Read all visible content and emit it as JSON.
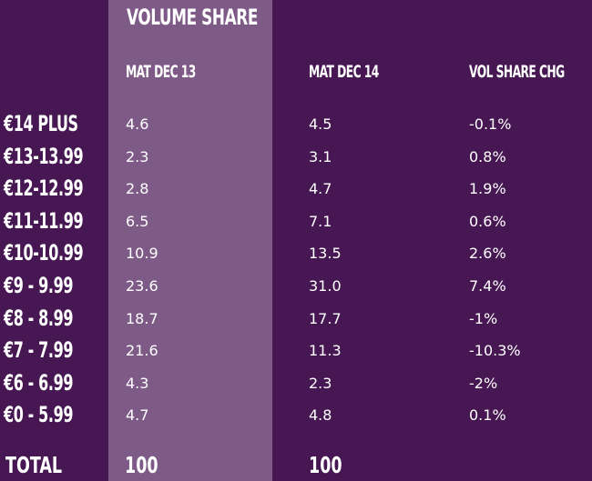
{
  "chart_data": {
    "type": "table",
    "title": "VOLUME SHARE",
    "columns": [
      "MAT DEC 13",
      "MAT DEC 14",
      "VOL SHARE CHG"
    ],
    "rows": [
      {
        "label": "€14 PLUS",
        "values": [
          "4.6",
          "4.5",
          "-0.1%"
        ]
      },
      {
        "label": "€13-13.99",
        "values": [
          "2.3",
          "3.1",
          "0.8%"
        ]
      },
      {
        "label": "€12-12.99",
        "values": [
          "2.8",
          "4.7",
          "1.9%"
        ]
      },
      {
        "label": "€11-11.99",
        "values": [
          "6.5",
          "7.1",
          "0.6%"
        ]
      },
      {
        "label": "€10-10.99",
        "values": [
          "10.9",
          "13.5",
          "2.6%"
        ]
      },
      {
        "label": "€9 - 9.99",
        "values": [
          "23.6",
          "31.0",
          "7.4%"
        ]
      },
      {
        "label": "€8 - 8.99",
        "values": [
          "18.7",
          "17.7",
          "-1%"
        ]
      },
      {
        "label": "€7 - 7.99",
        "values": [
          "21.6",
          "11.3",
          "-10.3%"
        ]
      },
      {
        "label": "€6 - 6.99",
        "values": [
          "4.3",
          "2.3",
          "-2%"
        ]
      },
      {
        "label": "€0 - 5.99",
        "values": [
          "4.7",
          "4.8",
          "0.1%"
        ]
      }
    ],
    "total": {
      "label": "TOTAL",
      "values": [
        "100",
        "100"
      ]
    },
    "colors": {
      "background": "#461752",
      "highlight": "#7e5a87",
      "text": "#ffffff"
    }
  }
}
